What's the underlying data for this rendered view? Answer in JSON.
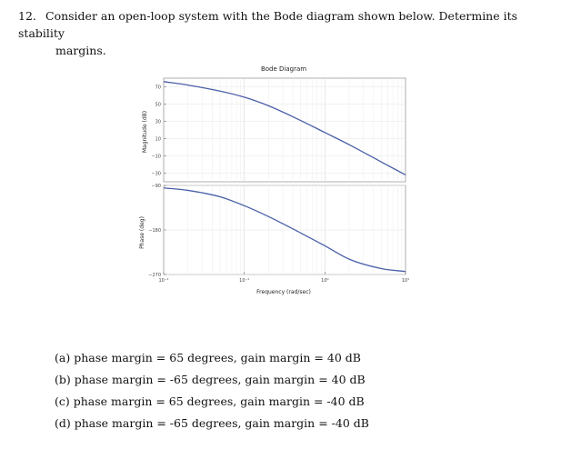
{
  "question": {
    "number": "12.",
    "text_line1": "Consider an open-loop system with the Bode diagram shown below. Determine its stability",
    "text_line2": "margins."
  },
  "chart_data": {
    "type": "line",
    "title": "Bode Diagram",
    "xlabel": "Frequency (rad/sec)",
    "xscale": "log",
    "xlim": [
      0.01,
      10
    ],
    "x_tick_labels": [
      "10⁻²",
      "10⁻¹",
      "10⁰",
      "10¹"
    ],
    "grid": true,
    "line_color": "#4a5fa8",
    "magnitude": {
      "ylabel": "Magnitude (dB)",
      "ylim": [
        -40,
        80
      ],
      "y_ticks": [
        70,
        50,
        30,
        10,
        -10,
        -30
      ],
      "y_tick_labels": [
        "70",
        "50",
        "30",
        "10",
        "−10",
        "−30"
      ],
      "x": [
        0.01,
        0.02,
        0.05,
        0.1,
        0.2,
        0.5,
        1,
        2,
        5,
        10
      ],
      "y": [
        76,
        72,
        65,
        58,
        48,
        31,
        17,
        3,
        -17,
        -32
      ]
    },
    "phase": {
      "ylabel": "Phase (deg)",
      "ylim": [
        -270,
        -90
      ],
      "y_ticks": [
        -90,
        -180,
        -270
      ],
      "y_tick_labels": [
        "−90",
        "−180",
        "−270"
      ],
      "x": [
        0.01,
        0.02,
        0.05,
        0.1,
        0.2,
        0.5,
        1,
        2,
        5,
        10
      ],
      "y": [
        -95,
        -100,
        -113,
        -131,
        -153,
        -186,
        -212,
        -239,
        -258,
        -264
      ]
    }
  },
  "options": [
    {
      "label": "(a)",
      "text": "phase margin = 65 degrees, gain margin = 40 dB"
    },
    {
      "label": "(b)",
      "text": "phase margin = -65 degrees, gain margin = 40 dB"
    },
    {
      "label": "(c)",
      "text": "phase margin = 65 degrees, gain margin = -40 dB"
    },
    {
      "label": "(d)",
      "text": "phase margin = -65 degrees, gain margin = -40 dB"
    }
  ]
}
